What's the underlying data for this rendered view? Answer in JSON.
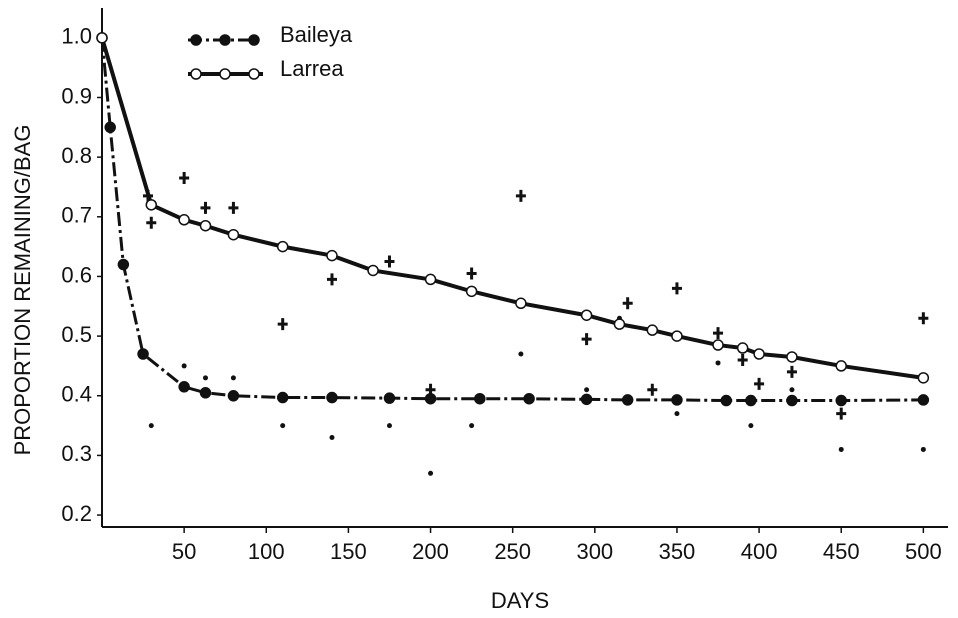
{
  "chart_data": {
    "type": "line",
    "x_label": "DAYS",
    "y_label": "PROPORTION REMAINING/BAG",
    "xlim": [
      0,
      515
    ],
    "ylim": [
      0.18,
      1.05
    ],
    "xticks": [
      50,
      100,
      150,
      200,
      250,
      300,
      350,
      400,
      450,
      500
    ],
    "yticks": [
      0.2,
      0.3,
      0.4,
      0.5,
      0.6,
      0.7,
      0.8,
      0.9,
      {
        "value": 1,
        "label": "1.0"
      }
    ],
    "legend": "upper left",
    "series": [
      {
        "name": "Baileya",
        "color": "#111111",
        "style": "dashdot",
        "marker": "filled",
        "x": [
          0,
          5,
          13,
          25,
          50,
          63,
          80,
          110,
          140,
          175,
          200,
          230,
          260,
          295,
          320,
          350,
          380,
          395,
          420,
          450,
          500
        ],
        "values": [
          1.0,
          0.85,
          0.62,
          0.47,
          0.415,
          0.405,
          0.4,
          0.397,
          0.397,
          0.396,
          0.395,
          0.395,
          0.395,
          0.394,
          0.393,
          0.393,
          0.392,
          0.392,
          0.392,
          0.392,
          0.393
        ],
        "replicates_x": [
          30,
          50,
          63,
          80,
          110,
          140,
          175,
          200,
          225,
          255,
          295,
          315,
          350,
          375,
          395,
          420,
          450,
          500
        ],
        "replicates": [
          0.35,
          0.45,
          0.43,
          0.43,
          0.35,
          0.33,
          0.35,
          0.27,
          0.35,
          0.47,
          0.41,
          0.53,
          0.37,
          0.455,
          0.35,
          0.41,
          0.31,
          0.31
        ]
      },
      {
        "name": "Larrea",
        "color": "#111111",
        "style": "solid",
        "marker": "open",
        "x": [
          0,
          30,
          50,
          63,
          80,
          110,
          140,
          165,
          200,
          225,
          255,
          295,
          315,
          335,
          350,
          375,
          390,
          400,
          420,
          450,
          500
        ],
        "values": [
          1.0,
          0.72,
          0.695,
          0.685,
          0.67,
          0.65,
          0.635,
          0.61,
          0.595,
          0.575,
          0.555,
          0.535,
          0.52,
          0.51,
          0.5,
          0.485,
          0.48,
          0.47,
          0.465,
          0.45,
          0.43
        ],
        "replicates_x": [
          28,
          30,
          50,
          63,
          80,
          110,
          140,
          175,
          200,
          225,
          255,
          295,
          320,
          335,
          350,
          375,
          390,
          400,
          420,
          450,
          500
        ],
        "replicates": [
          0.735,
          0.69,
          0.765,
          0.715,
          0.715,
          0.52,
          0.595,
          0.625,
          0.41,
          0.605,
          0.735,
          0.495,
          0.555,
          0.41,
          0.58,
          0.505,
          0.46,
          0.42,
          0.44,
          0.37,
          0.53
        ]
      }
    ]
  }
}
